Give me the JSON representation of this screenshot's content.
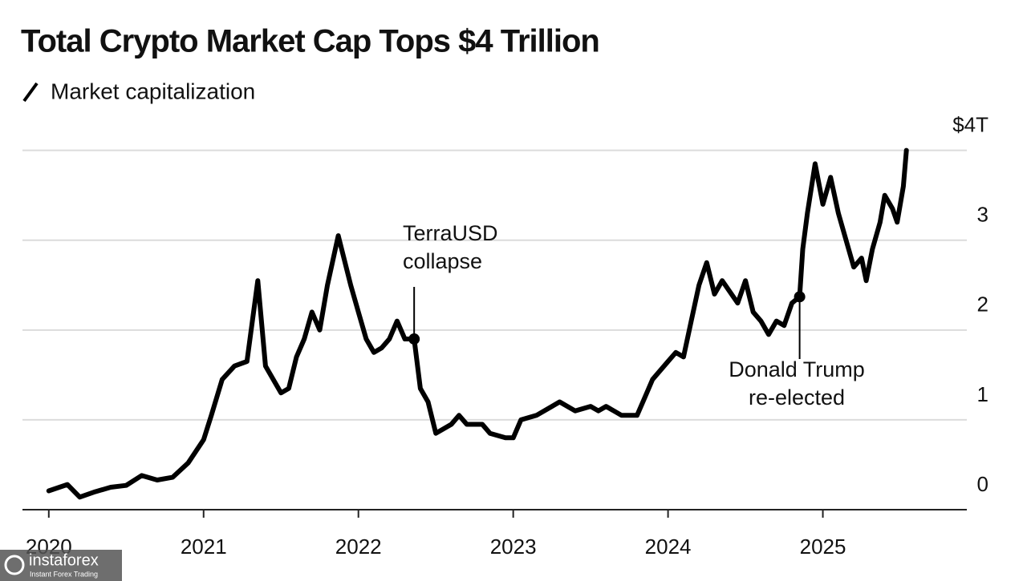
{
  "chart_data": {
    "type": "line",
    "title": "Total Crypto Market Cap Tops $4 Trillion",
    "series": [
      {
        "name": "Market capitalization",
        "color": "#000000",
        "x": [
          2020.0,
          2020.12,
          2020.2,
          2020.3,
          2020.4,
          2020.5,
          2020.6,
          2020.7,
          2020.8,
          2020.9,
          2021.0,
          2021.05,
          2021.12,
          2021.2,
          2021.28,
          2021.35,
          2021.4,
          2021.5,
          2021.55,
          2021.6,
          2021.65,
          2021.7,
          2021.75,
          2021.8,
          2021.87,
          2021.95,
          2022.0,
          2022.05,
          2022.1,
          2022.15,
          2022.2,
          2022.25,
          2022.3,
          2022.36,
          2022.4,
          2022.45,
          2022.5,
          2022.6,
          2022.65,
          2022.7,
          2022.8,
          2022.85,
          2022.95,
          2023.0,
          2023.05,
          2023.15,
          2023.25,
          2023.3,
          2023.4,
          2023.5,
          2023.55,
          2023.6,
          2023.7,
          2023.8,
          2023.85,
          2023.9,
          2024.0,
          2024.05,
          2024.1,
          2024.15,
          2024.2,
          2024.25,
          2024.3,
          2024.35,
          2024.45,
          2024.5,
          2024.55,
          2024.6,
          2024.65,
          2024.7,
          2024.75,
          2024.8,
          2024.85,
          2024.87,
          2024.9,
          2024.95,
          2025.0,
          2025.05,
          2025.1,
          2025.15,
          2025.2,
          2025.25,
          2025.28,
          2025.32,
          2025.37,
          2025.4,
          2025.45,
          2025.48,
          2025.52,
          2025.54
        ],
        "values": [
          0.21,
          0.28,
          0.14,
          0.2,
          0.25,
          0.27,
          0.38,
          0.33,
          0.36,
          0.52,
          0.78,
          1.05,
          1.45,
          1.6,
          1.65,
          2.55,
          1.6,
          1.3,
          1.35,
          1.7,
          1.9,
          2.2,
          2.0,
          2.5,
          3.05,
          2.5,
          2.2,
          1.9,
          1.75,
          1.8,
          1.9,
          2.1,
          1.9,
          1.9,
          1.35,
          1.2,
          0.85,
          0.95,
          1.05,
          0.95,
          0.95,
          0.85,
          0.8,
          0.8,
          1.0,
          1.05,
          1.15,
          1.2,
          1.1,
          1.15,
          1.1,
          1.15,
          1.05,
          1.05,
          1.25,
          1.45,
          1.65,
          1.75,
          1.7,
          2.1,
          2.5,
          2.75,
          2.4,
          2.55,
          2.3,
          2.55,
          2.2,
          2.1,
          1.95,
          2.1,
          2.05,
          2.3,
          2.37,
          2.9,
          3.3,
          3.85,
          3.4,
          3.7,
          3.3,
          3.0,
          2.7,
          2.8,
          2.55,
          2.9,
          3.2,
          3.5,
          3.35,
          3.2,
          3.6,
          4.0
        ]
      }
    ],
    "annotations": [
      {
        "lines": [
          "TerraUSD",
          "collapse"
        ]
      },
      {
        "lines": [
          "Donald Trump",
          "re-elected"
        ]
      }
    ],
    "xlim": [
      2019.83,
      2025.93
    ],
    "xticks": [
      2020,
      2021,
      2022,
      2023,
      2024,
      2025
    ],
    "ylim": [
      0,
      4.3
    ],
    "yticks": [
      0,
      1,
      2,
      3,
      {
        "value": 4,
        "label": "$4T"
      }
    ],
    "grid": true
  },
  "watermark": {
    "brand": "instaforex",
    "tagline": "Instant Forex Trading"
  }
}
